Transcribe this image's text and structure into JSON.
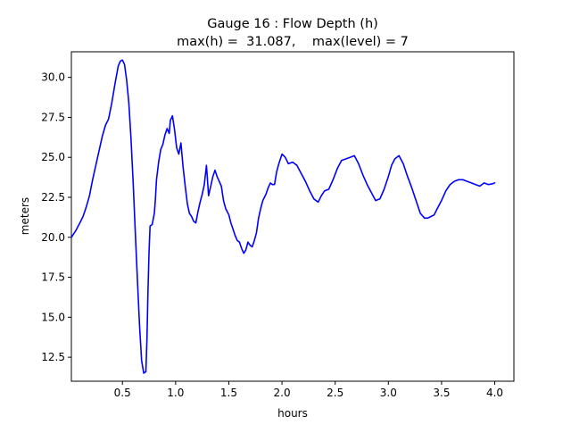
{
  "chart_data": {
    "type": "line",
    "title": "Gauge 16 : Flow Depth (h)",
    "subtitle": "max(h) =  31.087,    max(level) = 7",
    "xlabel": "hours",
    "ylabel": "meters",
    "xlim": [
      0.02,
      4.18
    ],
    "ylim": [
      11.0,
      31.6
    ],
    "xticks": [
      0.5,
      1.0,
      1.5,
      2.0,
      2.5,
      3.0,
      3.5,
      4.0
    ],
    "xtick_labels": [
      "0.5",
      "1.0",
      "1.5",
      "2.0",
      "2.5",
      "3.0",
      "3.5",
      "4.0"
    ],
    "yticks": [
      12.5,
      15.0,
      17.5,
      20.0,
      22.5,
      25.0,
      27.5,
      30.0
    ],
    "ytick_labels": [
      "12.5",
      "15.0",
      "17.5",
      "20.0",
      "22.5",
      "25.0",
      "27.5",
      "30.0"
    ],
    "grid": false,
    "legend": "none",
    "series": [
      {
        "color": "#0000ff",
        "x": [
          0.02,
          0.06,
          0.1,
          0.13,
          0.16,
          0.19,
          0.22,
          0.25,
          0.28,
          0.31,
          0.34,
          0.37,
          0.4,
          0.43,
          0.46,
          0.48,
          0.5,
          0.52,
          0.54,
          0.56,
          0.58,
          0.6,
          0.62,
          0.64,
          0.66,
          0.68,
          0.7,
          0.72,
          0.73,
          0.74,
          0.75,
          0.76,
          0.78,
          0.8,
          0.81,
          0.82,
          0.84,
          0.86,
          0.88,
          0.9,
          0.92,
          0.94,
          0.95,
          0.97,
          0.99,
          1.01,
          1.03,
          1.05,
          1.07,
          1.09,
          1.11,
          1.13,
          1.15,
          1.17,
          1.19,
          1.21,
          1.23,
          1.25,
          1.27,
          1.29,
          1.31,
          1.33,
          1.35,
          1.37,
          1.39,
          1.41,
          1.43,
          1.45,
          1.47,
          1.5,
          1.52,
          1.54,
          1.56,
          1.58,
          1.6,
          1.62,
          1.64,
          1.66,
          1.68,
          1.7,
          1.72,
          1.74,
          1.76,
          1.78,
          1.8,
          1.82,
          1.85,
          1.87,
          1.89,
          1.91,
          1.93,
          1.95,
          1.97,
          2.0,
          2.03,
          2.06,
          2.1,
          2.14,
          2.18,
          2.22,
          2.26,
          2.3,
          2.34,
          2.37,
          2.4,
          2.44,
          2.48,
          2.52,
          2.56,
          2.6,
          2.64,
          2.68,
          2.72,
          2.76,
          2.8,
          2.84,
          2.88,
          2.92,
          2.96,
          3.0,
          3.03,
          3.06,
          3.1,
          3.14,
          3.18,
          3.22,
          3.26,
          3.3,
          3.34,
          3.37,
          3.4,
          3.43,
          3.46,
          3.5,
          3.54,
          3.58,
          3.62,
          3.66,
          3.7,
          3.74,
          3.78,
          3.82,
          3.86,
          3.9,
          3.94,
          3.98,
          4.0
        ],
        "y": [
          20.0,
          20.4,
          20.9,
          21.3,
          21.9,
          22.6,
          23.6,
          24.5,
          25.4,
          26.3,
          27.0,
          27.4,
          28.4,
          29.6,
          30.7,
          31.0,
          31.087,
          30.8,
          29.8,
          28.4,
          26.2,
          23.5,
          20.5,
          17.5,
          14.6,
          12.3,
          11.5,
          11.6,
          13.6,
          16.5,
          19.0,
          20.7,
          20.8,
          21.5,
          22.4,
          23.6,
          24.7,
          25.5,
          25.8,
          26.4,
          26.8,
          26.5,
          27.3,
          27.6,
          26.7,
          25.6,
          25.2,
          25.9,
          24.4,
          23.2,
          22.1,
          21.5,
          21.3,
          21.0,
          20.9,
          21.6,
          22.2,
          22.7,
          23.3,
          24.5,
          22.6,
          23.2,
          23.8,
          24.2,
          23.8,
          23.5,
          23.2,
          22.3,
          21.8,
          21.4,
          20.9,
          20.5,
          20.1,
          19.8,
          19.7,
          19.3,
          19.0,
          19.2,
          19.7,
          19.5,
          19.4,
          19.8,
          20.3,
          21.2,
          21.8,
          22.3,
          22.7,
          23.1,
          23.4,
          23.3,
          23.3,
          24.1,
          24.6,
          25.2,
          25.0,
          24.6,
          24.7,
          24.5,
          24.0,
          23.5,
          22.9,
          22.4,
          22.2,
          22.6,
          22.9,
          23.0,
          23.6,
          24.3,
          24.8,
          24.9,
          25.0,
          25.1,
          24.6,
          23.9,
          23.3,
          22.8,
          22.3,
          22.4,
          23.0,
          23.8,
          24.5,
          24.9,
          25.1,
          24.6,
          23.8,
          23.1,
          22.3,
          21.5,
          21.2,
          21.2,
          21.3,
          21.4,
          21.8,
          22.3,
          22.9,
          23.3,
          23.5,
          23.6,
          23.6,
          23.5,
          23.4,
          23.3,
          23.2,
          23.4,
          23.3,
          23.35,
          23.4
        ]
      }
    ]
  }
}
